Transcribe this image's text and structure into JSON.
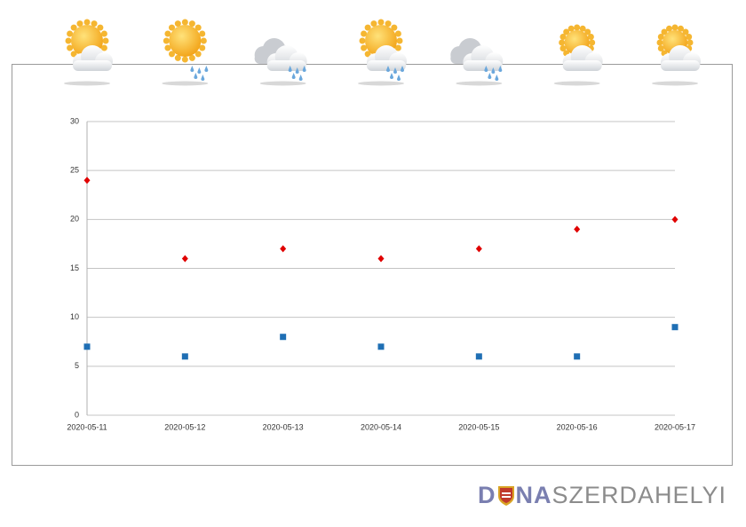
{
  "chart_data": {
    "type": "scatter",
    "x": [
      "2020-05-11",
      "2020-05-12",
      "2020-05-13",
      "2020-05-14",
      "2020-05-15",
      "2020-05-16",
      "2020-05-17"
    ],
    "series": [
      {
        "color": "#e00000",
        "marker": "diamond",
        "values": [
          24,
          16,
          17,
          16,
          17,
          19,
          20
        ]
      },
      {
        "color": "#1f6fb4",
        "marker": "square",
        "values": [
          7,
          6,
          8,
          7,
          6,
          6,
          9
        ]
      }
    ],
    "ylim": [
      0,
      30
    ],
    "yticks": [
      0,
      5,
      10,
      15,
      20,
      25,
      30
    ],
    "grid": true
  },
  "logo": {
    "parts": [
      "D",
      "NA",
      "SZERDAHELYI"
    ]
  }
}
